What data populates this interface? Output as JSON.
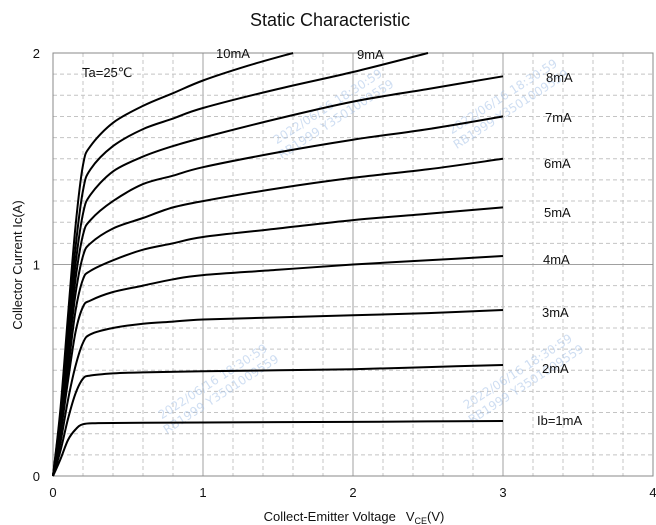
{
  "chart_data": {
    "type": "line",
    "title": "Static Characteristic",
    "xlabel": "Collect-Emitter Voltage",
    "xlabel_main": "V",
    "xlabel_sub": "CE",
    "xlabel_unit": "(V)",
    "ylabel": "Collector  Current   Ic(A)",
    "xlim": [
      0,
      4
    ],
    "ylim": [
      0,
      2
    ],
    "x_ticks": [
      "0",
      "1",
      "2",
      "3",
      "4"
    ],
    "y_ticks": [
      "0",
      "1",
      "2"
    ],
    "grid": true,
    "annotation": "Ta=25℃",
    "series": [
      {
        "name": "Ib=1mA",
        "points": [
          [
            0,
            0
          ],
          [
            0.05,
            0.08
          ],
          [
            0.1,
            0.17
          ],
          [
            0.15,
            0.22
          ],
          [
            0.2,
            0.245
          ],
          [
            0.3,
            0.25
          ],
          [
            0.6,
            0.252
          ],
          [
            1,
            0.253
          ],
          [
            1.5,
            0.255
          ],
          [
            2,
            0.256
          ],
          [
            2.5,
            0.258
          ],
          [
            3,
            0.26
          ]
        ]
      },
      {
        "name": "2mA",
        "points": [
          [
            0,
            0
          ],
          [
            0.05,
            0.12
          ],
          [
            0.1,
            0.27
          ],
          [
            0.15,
            0.39
          ],
          [
            0.2,
            0.46
          ],
          [
            0.25,
            0.475
          ],
          [
            0.4,
            0.485
          ],
          [
            0.6,
            0.49
          ],
          [
            1,
            0.495
          ],
          [
            1.5,
            0.5
          ],
          [
            2,
            0.505
          ],
          [
            2.5,
            0.515
          ],
          [
            3,
            0.525
          ]
        ]
      },
      {
        "name": "3mA",
        "points": [
          [
            0,
            0
          ],
          [
            0.05,
            0.16
          ],
          [
            0.1,
            0.36
          ],
          [
            0.15,
            0.52
          ],
          [
            0.2,
            0.63
          ],
          [
            0.25,
            0.67
          ],
          [
            0.4,
            0.7
          ],
          [
            0.6,
            0.72
          ],
          [
            0.8,
            0.73
          ],
          [
            1,
            0.74
          ],
          [
            1.5,
            0.75
          ],
          [
            2,
            0.76
          ],
          [
            2.5,
            0.77
          ],
          [
            3,
            0.785
          ]
        ]
      },
      {
        "name": "4mA",
        "points": [
          [
            0,
            0
          ],
          [
            0.05,
            0.2
          ],
          [
            0.1,
            0.45
          ],
          [
            0.15,
            0.68
          ],
          [
            0.2,
            0.8
          ],
          [
            0.25,
            0.83
          ],
          [
            0.4,
            0.87
          ],
          [
            0.6,
            0.9
          ],
          [
            0.8,
            0.93
          ],
          [
            1,
            0.95
          ],
          [
            1.5,
            0.975
          ],
          [
            2,
            1.0
          ],
          [
            2.5,
            1.02
          ],
          [
            3,
            1.04
          ]
        ]
      },
      {
        "name": "5mA",
        "points": [
          [
            0,
            0
          ],
          [
            0.05,
            0.22
          ],
          [
            0.1,
            0.5
          ],
          [
            0.15,
            0.78
          ],
          [
            0.2,
            0.93
          ],
          [
            0.25,
            0.97
          ],
          [
            0.4,
            1.02
          ],
          [
            0.6,
            1.07
          ],
          [
            0.8,
            1.1
          ],
          [
            1,
            1.13
          ],
          [
            1.5,
            1.17
          ],
          [
            2,
            1.21
          ],
          [
            2.5,
            1.24
          ],
          [
            3,
            1.27
          ]
        ]
      },
      {
        "name": "6mA",
        "points": [
          [
            0,
            0
          ],
          [
            0.05,
            0.24
          ],
          [
            0.1,
            0.56
          ],
          [
            0.15,
            0.86
          ],
          [
            0.2,
            1.04
          ],
          [
            0.25,
            1.1
          ],
          [
            0.4,
            1.17
          ],
          [
            0.6,
            1.22
          ],
          [
            0.8,
            1.27
          ],
          [
            1,
            1.3
          ],
          [
            1.5,
            1.36
          ],
          [
            2,
            1.41
          ],
          [
            2.5,
            1.45
          ],
          [
            3,
            1.5
          ]
        ]
      },
      {
        "name": "7mA",
        "points": [
          [
            0,
            0
          ],
          [
            0.05,
            0.26
          ],
          [
            0.1,
            0.6
          ],
          [
            0.15,
            0.93
          ],
          [
            0.2,
            1.14
          ],
          [
            0.25,
            1.21
          ],
          [
            0.4,
            1.3
          ],
          [
            0.6,
            1.38
          ],
          [
            0.8,
            1.42
          ],
          [
            1,
            1.46
          ],
          [
            1.5,
            1.53
          ],
          [
            2,
            1.59
          ],
          [
            2.5,
            1.64
          ],
          [
            3,
            1.7
          ]
        ]
      },
      {
        "name": "8mA",
        "points": [
          [
            0,
            0
          ],
          [
            0.05,
            0.28
          ],
          [
            0.1,
            0.65
          ],
          [
            0.15,
            1.0
          ],
          [
            0.2,
            1.24
          ],
          [
            0.25,
            1.33
          ],
          [
            0.4,
            1.44
          ],
          [
            0.6,
            1.51
          ],
          [
            0.8,
            1.56
          ],
          [
            1,
            1.6
          ],
          [
            1.5,
            1.69
          ],
          [
            2,
            1.77
          ],
          [
            2.5,
            1.83
          ],
          [
            3,
            1.89
          ]
        ]
      },
      {
        "name": "9mA",
        "points": [
          [
            0,
            0
          ],
          [
            0.05,
            0.3
          ],
          [
            0.1,
            0.7
          ],
          [
            0.15,
            1.08
          ],
          [
            0.2,
            1.35
          ],
          [
            0.25,
            1.45
          ],
          [
            0.4,
            1.56
          ],
          [
            0.6,
            1.64
          ],
          [
            0.8,
            1.69
          ],
          [
            1,
            1.74
          ],
          [
            1.5,
            1.83
          ],
          [
            2,
            1.91
          ],
          [
            2.5,
            2.0
          ]
        ]
      },
      {
        "name": "10mA",
        "points": [
          [
            0,
            0
          ],
          [
            0.05,
            0.32
          ],
          [
            0.1,
            0.76
          ],
          [
            0.15,
            1.18
          ],
          [
            0.2,
            1.47
          ],
          [
            0.25,
            1.56
          ],
          [
            0.4,
            1.67
          ],
          [
            0.6,
            1.75
          ],
          [
            0.8,
            1.81
          ],
          [
            1,
            1.87
          ],
          [
            1.3,
            1.94
          ],
          [
            1.6,
            2.0
          ]
        ]
      }
    ],
    "watermarks": [
      "2022/06/16  18:30:59",
      "RB1999  Y3501009559"
    ]
  }
}
